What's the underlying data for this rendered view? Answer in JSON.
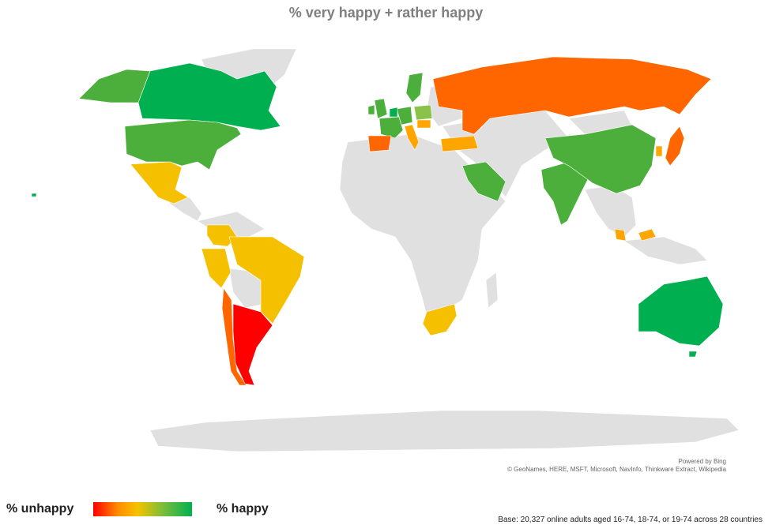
{
  "title": "% very happy + rather happy",
  "attribution": {
    "powered_by": "Powered by Bing",
    "sources": "© GeoNames, HERE, MSFT, Microsoft, NavInfo, Thinkware Extract, Wikipedia"
  },
  "legend": {
    "low_label": "% unhappy",
    "high_label": "% happy",
    "gradient_colors": [
      "#ff0000",
      "#ff8c00",
      "#f5c300",
      "#7dbd3a",
      "#00b050"
    ]
  },
  "base_note": "Base: 20,327 online adults aged 16-74, 18-74, or 19-74 across 28 countries",
  "colors": {
    "background_land": "#e0e0e0",
    "green_dark": "#00b050",
    "green": "#4caf3c",
    "green_light": "#8bc34a",
    "yellow": "#f5c000",
    "orange": "#ffa500",
    "orange_dark": "#ff6600",
    "red": "#ff0000"
  }
}
